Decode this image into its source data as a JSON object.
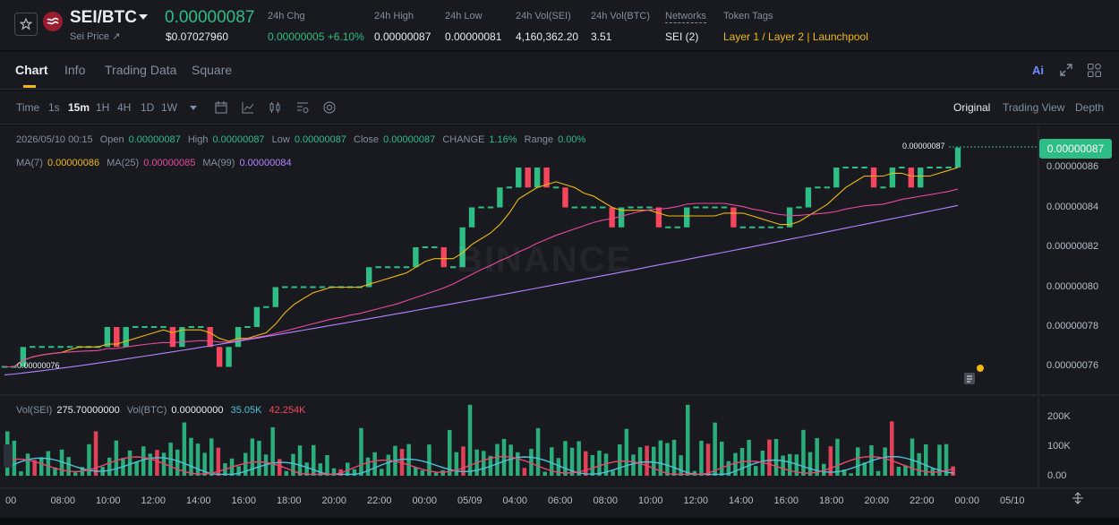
{
  "header": {
    "pair": "SEI/BTC",
    "sub_label": "Sei Price ↗",
    "last_price": "0.00000087",
    "usd_price": "$0.07027960",
    "stats": [
      {
        "label": "24h Chg",
        "value": "0.00000005 +6.10%",
        "color": "green"
      },
      {
        "label": "24h High",
        "value": "0.00000087"
      },
      {
        "label": "24h Low",
        "value": "0.00000081"
      },
      {
        "label": "24h Vol(SEI)",
        "value": "4,160,362.20"
      },
      {
        "label": "24h Vol(BTC)",
        "value": "3.51"
      },
      {
        "label": "Networks",
        "value": "SEI (2)"
      },
      {
        "label": "Token Tags",
        "value": "Layer 1 / Layer 2 | Launchpool",
        "color": "yellow"
      }
    ]
  },
  "tabs": [
    "Chart",
    "Info",
    "Trading Data",
    "Square"
  ],
  "toolbar": {
    "timeframes": [
      "Time",
      "1s",
      "15m",
      "1H",
      "4H",
      "1D",
      "1W"
    ],
    "active_timeframe": "15m",
    "views": [
      "Original",
      "Trading View",
      "Depth"
    ],
    "active_view": "Original",
    "ai_label": "Ai"
  },
  "legend": {
    "ohlc": {
      "date": "2026/05/10 00:15",
      "open_label": "Open",
      "open": "0.00000087",
      "high_label": "High",
      "high": "0.00000087",
      "low_label": "Low",
      "low": "0.00000087",
      "close_label": "Close",
      "close": "0.00000087",
      "change_label": "CHANGE",
      "change": "1.16%",
      "range_label": "Range",
      "range": "0.00%"
    },
    "ma": {
      "ma7_label": "MA(7)",
      "ma7": "0.00000086",
      "ma25_label": "MA(25)",
      "ma25": "0.00000085",
      "ma99_label": "MA(99)",
      "ma99": "0.00000084"
    },
    "vol": {
      "vol_sei_label": "Vol(SEI)",
      "vol_sei": "275.70000000",
      "vol_btc_label": "Vol(BTC)",
      "vol_btc": "0.00000000",
      "ma_a": "35.05K",
      "ma_b": "42.254K"
    }
  },
  "price_axis": {
    "current": "0.00000087",
    "ticks": [
      "0.00000086",
      "0.00000084",
      "0.00000082",
      "0.00000080",
      "0.00000078",
      "0.00000076"
    ],
    "high_mark": "0.00000087",
    "low_mark": "0.00000076"
  },
  "volume_axis": {
    "ticks": [
      "200K",
      "100K",
      "0.00"
    ]
  },
  "time_axis": [
    "00",
    "08:00",
    "10:00",
    "12:00",
    "14:00",
    "16:00",
    "18:00",
    "20:00",
    "22:00",
    "00:00",
    "05/09",
    "04:00",
    "06:00",
    "08:00",
    "10:00",
    "12:00",
    "14:00",
    "16:00",
    "18:00",
    "20:00",
    "22:00",
    "00:00",
    "05/10"
  ],
  "watermark": "BINANCE",
  "colors": {
    "up": "#2ebd85",
    "down": "#f6465d",
    "ma7": "#f0b90b",
    "ma25": "#e84a9b",
    "ma99": "#b383ff"
  },
  "chart_data": {
    "type": "candlestick",
    "candles_close": [
      76,
      76,
      77,
      77,
      77,
      77,
      77,
      77,
      77,
      77,
      77,
      78,
      77,
      78,
      78,
      78,
      78,
      78,
      77,
      78,
      78,
      78,
      77,
      76,
      77,
      78,
      78,
      79,
      79,
      80,
      80,
      80,
      80,
      80,
      80,
      80,
      80,
      80,
      80,
      81,
      81,
      81,
      81,
      81,
      82,
      82,
      82,
      81,
      81,
      83,
      84,
      84,
      84,
      85,
      85,
      86,
      85,
      86,
      85,
      85,
      84,
      84,
      84,
      84,
      84,
      83,
      84,
      84,
      84,
      84,
      83,
      83,
      83,
      84,
      84,
      84,
      84,
      84,
      83,
      83,
      83,
      83,
      83,
      83,
      84,
      84,
      85,
      85,
      85,
      86,
      86,
      86,
      86,
      85,
      85,
      86,
      86,
      85,
      86,
      86,
      86,
      86,
      87
    ],
    "volume_max": 250000
  }
}
